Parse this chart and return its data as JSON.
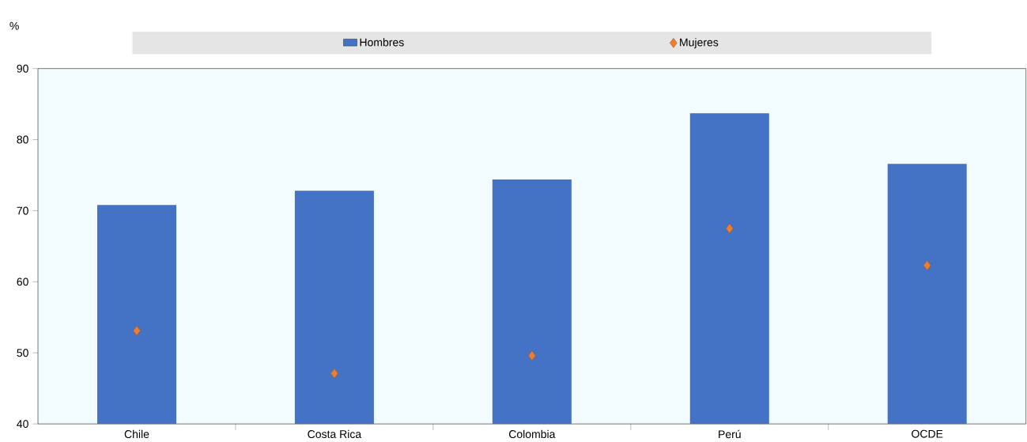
{
  "chart_data": {
    "type": "bar",
    "ylabel": "%",
    "categories": [
      "Chile",
      "Costa Rica",
      "Colombia",
      "Perú",
      "OCDE"
    ],
    "series": [
      {
        "name": "Hombres",
        "color": "#4472c4",
        "values": [
          70.8,
          72.8,
          74.4,
          83.7,
          76.6
        ]
      },
      {
        "name": "Mujeres",
        "type": "scatter",
        "color": "#ed7d31",
        "values": [
          53.1,
          47.1,
          49.6,
          67.5,
          62.3
        ]
      }
    ],
    "ylim": [
      40,
      90
    ],
    "yticks": [
      40,
      50,
      60,
      70,
      80,
      90
    ],
    "legend": "top",
    "marker": "diamond",
    "grid": false
  }
}
